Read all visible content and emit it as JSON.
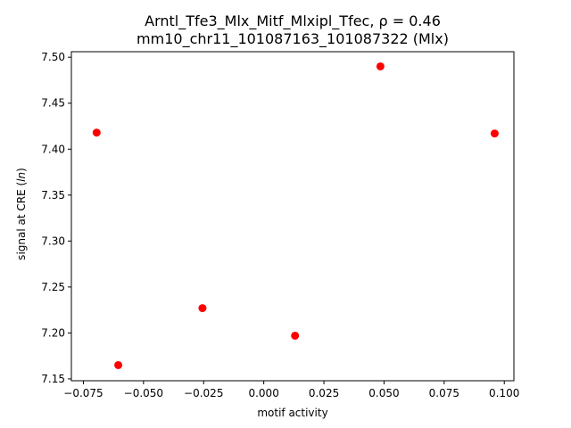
{
  "chart_data": {
    "type": "scatter",
    "title_line1": "Arntl_Tfe3_Mlx_Mitf_Mlxipl_Tfec, ρ = 0.46",
    "title_line2": "mm10_chr11_101087163_101087322 (Mlx)",
    "xlabel": "motif activity",
    "ylabel_prefix": "signal at CRE (",
    "ylabel_italic": "ln",
    "ylabel_suffix": ")",
    "xlim": [
      -0.08,
      0.104
    ],
    "ylim": [
      7.148,
      7.506
    ],
    "xticks": [
      -0.075,
      -0.05,
      -0.025,
      0.0,
      0.025,
      0.05,
      0.075,
      0.1
    ],
    "xtick_labels": [
      "−0.075",
      "−0.050",
      "−0.025",
      "0.000",
      "0.025",
      "0.050",
      "0.075",
      "0.100"
    ],
    "yticks": [
      7.15,
      7.2,
      7.25,
      7.3,
      7.35,
      7.4,
      7.45,
      7.5
    ],
    "ytick_labels": [
      "7.15",
      "7.20",
      "7.25",
      "7.30",
      "7.35",
      "7.40",
      "7.45",
      "7.50"
    ],
    "grid": false,
    "marker_color": "#ff0000",
    "points": [
      {
        "x": -0.0695,
        "y": 7.418
      },
      {
        "x": -0.0605,
        "y": 7.165
      },
      {
        "x": -0.0255,
        "y": 7.227
      },
      {
        "x": 0.013,
        "y": 7.197
      },
      {
        "x": 0.0485,
        "y": 7.49
      },
      {
        "x": 0.096,
        "y": 7.417
      }
    ]
  }
}
